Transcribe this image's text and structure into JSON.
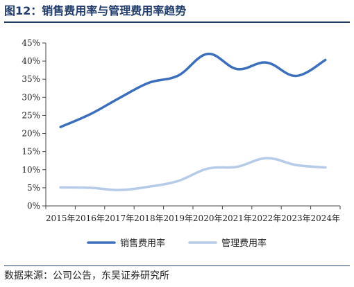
{
  "header": {
    "title": "图12：销售费用率与管理费用率趋势"
  },
  "footer": {
    "source": "数据来源：公司公告，东吴证券研究所"
  },
  "chart_data": {
    "type": "line",
    "title": "图12：销售费用率与管理费用率趋势",
    "categories": [
      "2015年",
      "2016年",
      "2017年",
      "2018年",
      "2019年",
      "2020年",
      "2021年",
      "2022年",
      "2023年",
      "2024年"
    ],
    "series": [
      {
        "name": "销售费用率",
        "values": [
          21.8,
          25.3,
          29.8,
          34.0,
          36.0,
          42.0,
          37.8,
          39.6,
          35.9,
          40.3
        ],
        "color": "#3b6fbe"
      },
      {
        "name": "管理费用率",
        "values": [
          5.1,
          5.0,
          4.4,
          5.3,
          6.9,
          10.3,
          10.8,
          13.2,
          11.3,
          10.6
        ],
        "color": "#b5cbe8"
      }
    ],
    "y_ticks": [
      "0%",
      "5%",
      "10%",
      "15%",
      "20%",
      "25%",
      "30%",
      "35%",
      "40%",
      "45%"
    ],
    "ylim": [
      0,
      45
    ],
    "y_unit": "%",
    "grid": false,
    "legend": "bottom-center"
  }
}
